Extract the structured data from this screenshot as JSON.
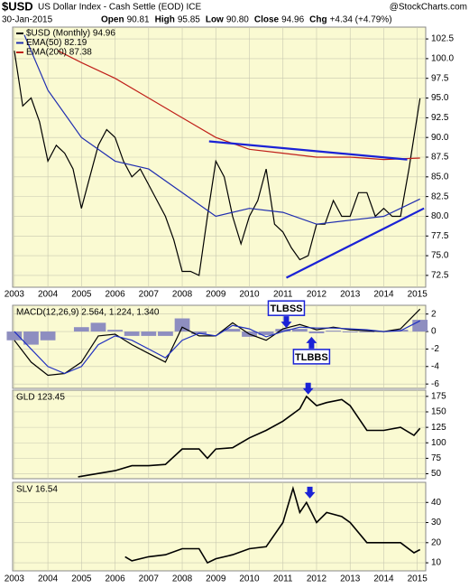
{
  "header": {
    "symbol": "$USD",
    "description": "US Dollar Index - Cash Settle (EOD) ICE",
    "source": "@StockCharts.com",
    "date": "30-Jan-2015",
    "quote": [
      {
        "label": "Open",
        "value": "90.81"
      },
      {
        "label": "High",
        "value": "95.85"
      },
      {
        "label": "Low",
        "value": "90.80"
      },
      {
        "label": "Close",
        "value": "94.96"
      },
      {
        "label": "Chg",
        "value": "+4.34 (+4.79%)"
      }
    ]
  },
  "chart_data": [
    {
      "type": "line",
      "xlim": [
        2002.95,
        2015.25
      ],
      "xticks": [
        2003,
        2004,
        2005,
        2006,
        2007,
        2008,
        2009,
        2010,
        2011,
        2012,
        2013,
        2014,
        2015
      ],
      "x": [
        2003,
        2003.25,
        2003.5,
        2003.75,
        2004,
        2004.25,
        2004.5,
        2004.75,
        2005,
        2005.25,
        2005.5,
        2005.75,
        2006,
        2006.25,
        2006.5,
        2006.75,
        2007,
        2007.25,
        2007.5,
        2007.75,
        2008,
        2008.25,
        2008.5,
        2008.75,
        2009,
        2009.25,
        2009.5,
        2009.75,
        2010,
        2010.25,
        2010.5,
        2010.75,
        2011,
        2011.25,
        2011.5,
        2011.75,
        2012,
        2012.25,
        2012.5,
        2012.75,
        2013,
        2013.25,
        2013.5,
        2013.75,
        2014,
        2014.25,
        2014.5,
        2014.75,
        2015.08
      ],
      "series": [
        {
          "name": "$USD (Monthly) 94.96",
          "color": "#000000",
          "values": [
            101,
            94,
            95,
            92,
            87,
            89,
            88,
            86,
            81,
            85,
            89,
            91,
            90,
            87,
            85,
            86,
            84,
            82,
            80,
            77,
            73,
            73,
            72.5,
            80,
            87,
            85,
            80,
            76.5,
            80,
            82,
            86,
            79,
            78,
            76,
            74.5,
            75,
            79,
            79,
            82,
            80,
            80,
            83,
            83,
            80,
            81,
            80,
            80,
            86,
            94.96
          ]
        },
        {
          "name": "EMA(50) 82.19",
          "color": "#1f2db0",
          "x": [
            2003.3,
            2004,
            2005,
            2006,
            2007,
            2008,
            2009,
            2010,
            2011,
            2012,
            2013,
            2014,
            2015.08
          ],
          "values": [
            103,
            96,
            90,
            87,
            86,
            83,
            80,
            81,
            80.5,
            79,
            79.5,
            80,
            82.19
          ]
        },
        {
          "name": "EMA(200) 87.38",
          "color": "#c0201a",
          "x": [
            2004.3,
            2005,
            2006,
            2007,
            2008,
            2009,
            2010,
            2011,
            2012,
            2013,
            2014,
            2015.08
          ],
          "values": [
            101,
            99.5,
            97.5,
            95,
            92.5,
            90,
            88.5,
            88,
            87.5,
            87.5,
            87.2,
            87.38
          ]
        }
      ],
      "trendlines": [
        {
          "color": "#1a22d6",
          "x": [
            2008.8,
            2014.7
          ],
          "y": [
            89.5,
            87.2
          ]
        },
        {
          "color": "#1a22d6",
          "x": [
            2011.1,
            2015.2
          ],
          "y": [
            72.2,
            81
          ]
        }
      ],
      "ylim": [
        71,
        104
      ],
      "yticks": [
        {
          "value": 72.5,
          "label": "72.5"
        },
        {
          "value": 75,
          "label": "75.0"
        },
        {
          "value": 77.5,
          "label": "77.5"
        },
        {
          "value": 80,
          "label": "80.0"
        },
        {
          "value": 82.5,
          "label": "82.5"
        },
        {
          "value": 85,
          "label": "85.0"
        },
        {
          "value": 87.5,
          "label": "87.5"
        },
        {
          "value": 90,
          "label": "90.0"
        },
        {
          "value": 92.5,
          "label": "92.5"
        },
        {
          "value": 95,
          "label": "95.0"
        },
        {
          "value": 97.5,
          "label": "97.5"
        },
        {
          "value": 100,
          "label": "100.0"
        },
        {
          "value": 102.5,
          "label": "102.5"
        }
      ],
      "grid": true
    },
    {
      "type": "line",
      "title": "MACD(12,26,9) 2.564, 1.224, 1.340",
      "x": [
        2003,
        2003.5,
        2004,
        2004.5,
        2005,
        2005.5,
        2006,
        2006.5,
        2007,
        2007.5,
        2008,
        2008.5,
        2009,
        2009.5,
        2010,
        2010.5,
        2011,
        2011.5,
        2012,
        2012.5,
        2013,
        2013.5,
        2014,
        2014.5,
        2015.08
      ],
      "series": [
        {
          "style": "histogram",
          "color": "#8e8ec0",
          "values": [
            -1,
            -1.5,
            -1,
            0,
            0.5,
            1,
            0.2,
            -0.5,
            -0.5,
            -0.5,
            1.5,
            -0.3,
            0,
            0.3,
            -0.6,
            -0.4,
            0.3,
            0.3,
            -0.2,
            0.1,
            -0.1,
            -0.1,
            0,
            0.2,
            1.34
          ]
        },
        {
          "color": "#000000",
          "values": [
            -1,
            -3.5,
            -5,
            -4.8,
            -3.5,
            -0.5,
            -0.3,
            -1.5,
            -2.5,
            -3.5,
            0.5,
            -0.5,
            -0.5,
            1,
            -0.3,
            -1,
            0.3,
            0.8,
            0.2,
            0.5,
            0.2,
            0.1,
            0,
            0.3,
            2.564
          ]
        },
        {
          "color": "#2030c0",
          "values": [
            0,
            -2,
            -4,
            -4.8,
            -4,
            -1.5,
            -0.5,
            -1,
            -2,
            -3,
            -1,
            -0.2,
            -0.5,
            0.7,
            0.3,
            -0.6,
            0,
            0.5,
            0.4,
            0.4,
            0.3,
            0.2,
            0,
            0.1,
            1.224
          ]
        }
      ],
      "annotations": [
        {
          "text": "TLBSS",
          "x": 2011.1,
          "y": 0.4,
          "dir": "down"
        },
        {
          "text": "TLBBS",
          "x": 2011.85,
          "y": -0.6,
          "dir": "up"
        }
      ],
      "ylim": [
        -6.5,
        3
      ],
      "yticks": [
        -6,
        -4,
        -2,
        0,
        2
      ],
      "grid": true
    },
    {
      "type": "line",
      "title": "GLD 123.45",
      "x": [
        2004.9,
        2006,
        2006.5,
        2007,
        2007.5,
        2008,
        2008.5,
        2008.75,
        2009,
        2009.5,
        2010,
        2010.5,
        2011,
        2011.5,
        2011.7,
        2012,
        2012.3,
        2012.75,
        2013,
        2013.5,
        2014,
        2014.5,
        2014.9,
        2015.08
      ],
      "series": [
        {
          "color": "#000000",
          "values": [
            45,
            55,
            63,
            63,
            65,
            90,
            90,
            75,
            90,
            92,
            108,
            120,
            135,
            155,
            175,
            160,
            165,
            170,
            160,
            120,
            120,
            125,
            112,
            123.45
          ]
        }
      ],
      "annotations": [
        {
          "x": 2011.75,
          "y": 178,
          "dir": "down"
        }
      ],
      "ylim": [
        42,
        185
      ],
      "yticks": [
        50,
        75,
        100,
        125,
        150,
        175
      ],
      "grid": true
    },
    {
      "type": "line",
      "title": "SLV 16.54",
      "x": [
        2006.3,
        2006.5,
        2007,
        2007.5,
        2008,
        2008.5,
        2008.75,
        2009,
        2009.5,
        2010,
        2010.5,
        2011,
        2011.3,
        2011.5,
        2011.7,
        2012,
        2012.3,
        2012.75,
        2013,
        2013.5,
        2014,
        2014.5,
        2014.9,
        2015.08
      ],
      "series": [
        {
          "color": "#000000",
          "values": [
            13,
            11,
            13,
            14,
            17,
            17,
            10,
            12,
            14,
            17,
            18,
            30,
            47,
            35,
            40,
            30,
            35,
            33,
            30,
            20,
            20,
            20,
            15,
            16.54
          ]
        }
      ],
      "annotations": [
        {
          "x": 2011.8,
          "y": 42,
          "dir": "down"
        }
      ],
      "ylim": [
        6,
        50
      ],
      "yticks": [
        10,
        20,
        30,
        40
      ],
      "grid": true
    }
  ]
}
